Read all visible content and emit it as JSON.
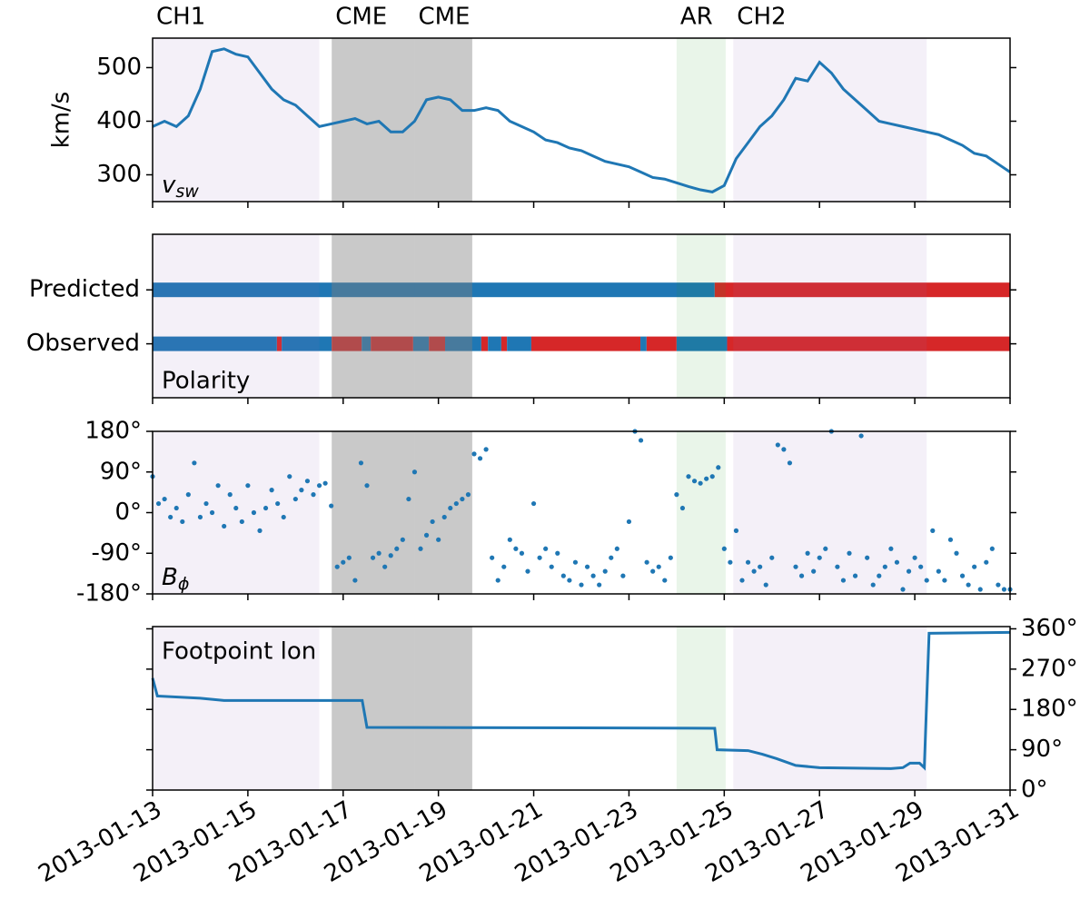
{
  "chart_data": [
    {
      "type": "line",
      "ylabel": "km/s",
      "label": [
        "v",
        "sw"
      ],
      "regions": [
        {
          "label": "CH1",
          "start": 0,
          "end": 3.5,
          "color": "#9467bd",
          "label_color": "#9467bd"
        },
        {
          "label": "CME",
          "start": 3.76,
          "end": 5.5,
          "color": "#7f7f7f",
          "label_color": "#000000"
        },
        {
          "label": "CME",
          "start": 5.5,
          "end": 6.71,
          "color": "#7f7f7f",
          "label_color": "#000000"
        },
        {
          "label": "AR",
          "start": 11.0,
          "end": 12.03,
          "color": "#2ca02c",
          "label_color": "#2ca02c"
        },
        {
          "label": "CH2",
          "start": 12.19,
          "end": 16.25,
          "color": "#9467bd",
          "label_color": "#9467bd"
        }
      ],
      "xlim": [
        0,
        18
      ],
      "x": [
        0,
        0.25,
        0.5,
        0.75,
        1,
        1.25,
        1.5,
        1.75,
        2,
        2.25,
        2.5,
        2.75,
        3,
        3.25,
        3.5,
        3.75,
        4,
        4.25,
        4.5,
        4.75,
        5,
        5.25,
        5.5,
        5.75,
        6,
        6.25,
        6.5,
        6.75,
        7,
        7.25,
        7.5,
        7.75,
        8,
        8.25,
        8.5,
        8.75,
        9,
        9.25,
        9.5,
        9.75,
        10,
        10.25,
        10.5,
        10.75,
        11,
        11.25,
        11.5,
        11.75,
        12,
        12.25,
        12.5,
        12.75,
        13,
        13.25,
        13.5,
        13.75,
        14,
        14.25,
        14.5,
        14.75,
        15,
        15.25,
        15.5,
        15.75,
        16,
        16.25,
        16.5,
        16.75,
        17,
        17.25,
        17.5,
        17.75,
        18
      ],
      "series": [
        {
          "color": "#1f77b4",
          "values": [
            390,
            400,
            390,
            410,
            460,
            530,
            535,
            525,
            520,
            490,
            460,
            440,
            430,
            410,
            390,
            395,
            400,
            405,
            395,
            400,
            380,
            380,
            400,
            440,
            445,
            440,
            420,
            420,
            425,
            420,
            400,
            390,
            380,
            365,
            360,
            350,
            345,
            335,
            325,
            320,
            315,
            305,
            295,
            292,
            285,
            278,
            272,
            268,
            280,
            330,
            360,
            390,
            410,
            440,
            480,
            475,
            510,
            490,
            460,
            440,
            420,
            400,
            395,
            390,
            385,
            380,
            375,
            365,
            355,
            340,
            335,
            320,
            305
          ]
        }
      ],
      "ylim": [
        250,
        555
      ],
      "yticks": [
        300,
        400,
        500
      ]
    },
    {
      "type": "segments",
      "label": "Polarity",
      "xlim": [
        0,
        18
      ],
      "series": [
        {
          "name": "Predicted",
          "segments": [
            {
              "start": 0,
              "end": 11.8,
              "color": "#1f77b4"
            },
            {
              "start": 11.8,
              "end": 18,
              "color": "#d62728"
            }
          ]
        },
        {
          "name": "Observed",
          "segments": [
            {
              "start": 0,
              "end": 2.61,
              "color": "#1f77b4"
            },
            {
              "start": 2.61,
              "end": 2.71,
              "color": "#d62728"
            },
            {
              "start": 2.71,
              "end": 3.76,
              "color": "#1f77b4"
            },
            {
              "start": 3.76,
              "end": 4.39,
              "color": "#d62728"
            },
            {
              "start": 4.39,
              "end": 4.58,
              "color": "#1f77b4"
            },
            {
              "start": 4.58,
              "end": 5.47,
              "color": "#d62728"
            },
            {
              "start": 5.47,
              "end": 5.8,
              "color": "#1f77b4"
            },
            {
              "start": 5.8,
              "end": 6.14,
              "color": "#d62728"
            },
            {
              "start": 6.14,
              "end": 6.9,
              "color": "#1f77b4"
            },
            {
              "start": 6.9,
              "end": 7.04,
              "color": "#d62728"
            },
            {
              "start": 7.04,
              "end": 7.32,
              "color": "#1f77b4"
            },
            {
              "start": 7.32,
              "end": 7.44,
              "color": "#d62728"
            },
            {
              "start": 7.44,
              "end": 7.95,
              "color": "#1f77b4"
            },
            {
              "start": 7.95,
              "end": 10.24,
              "color": "#d62728"
            },
            {
              "start": 10.24,
              "end": 10.37,
              "color": "#1f77b4"
            },
            {
              "start": 10.37,
              "end": 11.0,
              "color": "#d62728"
            },
            {
              "start": 11.0,
              "end": 12.06,
              "color": "#1f77b4"
            },
            {
              "start": 12.06,
              "end": 18,
              "color": "#d62728"
            }
          ]
        }
      ]
    },
    {
      "type": "scatter",
      "label": [
        "B",
        "ϕ"
      ],
      "xlim": [
        0,
        18
      ],
      "x": [
        0,
        0.125,
        0.25,
        0.375,
        0.5,
        0.625,
        0.75,
        0.875,
        1,
        1.125,
        1.25,
        1.375,
        1.5,
        1.625,
        1.75,
        1.875,
        2,
        2.125,
        2.25,
        2.375,
        2.5,
        2.625,
        2.75,
        2.875,
        3,
        3.125,
        3.25,
        3.375,
        3.5,
        3.625,
        3.75,
        3.875,
        4,
        4.125,
        4.25,
        4.375,
        4.5,
        4.625,
        4.75,
        4.875,
        5,
        5.125,
        5.25,
        5.375,
        5.5,
        5.625,
        5.75,
        5.875,
        6,
        6.125,
        6.25,
        6.375,
        6.5,
        6.625,
        6.75,
        6.875,
        7,
        7.125,
        7.25,
        7.375,
        7.5,
        7.625,
        7.75,
        7.875,
        8,
        8.125,
        8.25,
        8.375,
        8.5,
        8.625,
        8.75,
        8.875,
        9,
        9.125,
        9.25,
        9.375,
        9.5,
        9.625,
        9.75,
        9.875,
        10,
        10.125,
        10.25,
        10.375,
        10.5,
        10.625,
        10.75,
        10.875,
        11,
        11.125,
        11.25,
        11.375,
        11.5,
        11.625,
        11.75,
        11.875,
        12,
        12.125,
        12.25,
        12.375,
        12.5,
        12.625,
        12.75,
        12.875,
        13,
        13.125,
        13.25,
        13.375,
        13.5,
        13.625,
        13.75,
        13.875,
        14,
        14.125,
        14.25,
        14.375,
        14.5,
        14.625,
        14.75,
        14.875,
        15,
        15.125,
        15.25,
        15.375,
        15.5,
        15.625,
        15.75,
        15.875,
        16,
        16.125,
        16.25,
        16.375,
        16.5,
        16.625,
        16.75,
        16.875,
        17,
        17.125,
        17.25,
        17.375,
        17.5,
        17.625,
        17.75,
        17.875,
        18
      ],
      "series": [
        {
          "color": "#1f77b4",
          "values": [
            80,
            20,
            30,
            -10,
            10,
            -20,
            40,
            110,
            -10,
            20,
            0,
            60,
            -30,
            40,
            10,
            -20,
            60,
            0,
            -40,
            10,
            50,
            20,
            -10,
            80,
            30,
            50,
            70,
            40,
            60,
            65,
            15,
            -120,
            -110,
            -100,
            -150,
            110,
            60,
            -100,
            -90,
            -120,
            -95,
            -80,
            -60,
            30,
            90,
            -80,
            -50,
            -20,
            -60,
            -10,
            10,
            20,
            30,
            40,
            130,
            120,
            140,
            -100,
            -150,
            -120,
            -60,
            -80,
            -90,
            -130,
            20,
            -100,
            -80,
            -120,
            -90,
            -140,
            -150,
            -110,
            -160,
            -120,
            -140,
            -160,
            -130,
            -100,
            -80,
            -140,
            -20,
            180,
            160,
            -110,
            -130,
            -120,
            -150,
            -100,
            40,
            10,
            80,
            70,
            65,
            75,
            80,
            100,
            -80,
            -110,
            -40,
            -150,
            -110,
            -130,
            -120,
            -160,
            -100,
            150,
            140,
            110,
            -120,
            -140,
            -90,
            -130,
            -100,
            -80,
            180,
            -120,
            -150,
            -90,
            -140,
            170,
            -100,
            -160,
            -140,
            -120,
            -80,
            -110,
            -170,
            -130,
            -100,
            -120,
            -150,
            -40,
            -130,
            -150,
            -60,
            -90,
            -140,
            -160,
            -120,
            -170,
            -110,
            -80,
            -160,
            -170,
            -170
          ]
        }
      ],
      "ylim": [
        -180,
        180
      ],
      "yticks": [
        {
          "value": 180,
          "label": "180°"
        },
        {
          "value": 90,
          "label": "90°"
        },
        {
          "value": 0,
          "label": "0°"
        },
        {
          "value": -90,
          "label": "-90°"
        },
        {
          "value": -180,
          "label": "-180°"
        }
      ]
    },
    {
      "type": "line",
      "label": "Footpoint lon",
      "xlim": [
        0,
        18
      ],
      "xticks": [
        {
          "value": 0,
          "label": "2013-01-13"
        },
        {
          "value": 2,
          "label": "2013-01-15"
        },
        {
          "value": 4,
          "label": "2013-01-17"
        },
        {
          "value": 6,
          "label": "2013-01-19"
        },
        {
          "value": 8,
          "label": "2013-01-21"
        },
        {
          "value": 10,
          "label": "2013-01-23"
        },
        {
          "value": 12,
          "label": "2013-01-25"
        },
        {
          "value": 14,
          "label": "2013-01-27"
        },
        {
          "value": 16,
          "label": "2013-01-29"
        },
        {
          "value": 18,
          "label": "2013-01-31"
        }
      ],
      "x": [
        0,
        0.1,
        1,
        1.5,
        4.4,
        4.5,
        11.8,
        11.85,
        12.5,
        12.8,
        13.1,
        13.5,
        14,
        15.5,
        15.75,
        15.9,
        16.1,
        16.2,
        16.3,
        18
      ],
      "series": [
        {
          "color": "#1f77b4",
          "axis": "y2",
          "values": [
            250,
            210,
            205,
            200,
            200,
            140,
            138,
            90,
            88,
            80,
            70,
            55,
            50,
            48,
            50,
            60,
            60,
            50,
            350,
            352
          ]
        }
      ],
      "y2lim": [
        0,
        365
      ],
      "y2ticks": [
        {
          "value": 0,
          "label": "0°"
        },
        {
          "value": 90,
          "label": "90°"
        },
        {
          "value": 180,
          "label": "180°"
        },
        {
          "value": 270,
          "label": "270°"
        },
        {
          "value": 360,
          "label": "360°"
        }
      ]
    }
  ]
}
